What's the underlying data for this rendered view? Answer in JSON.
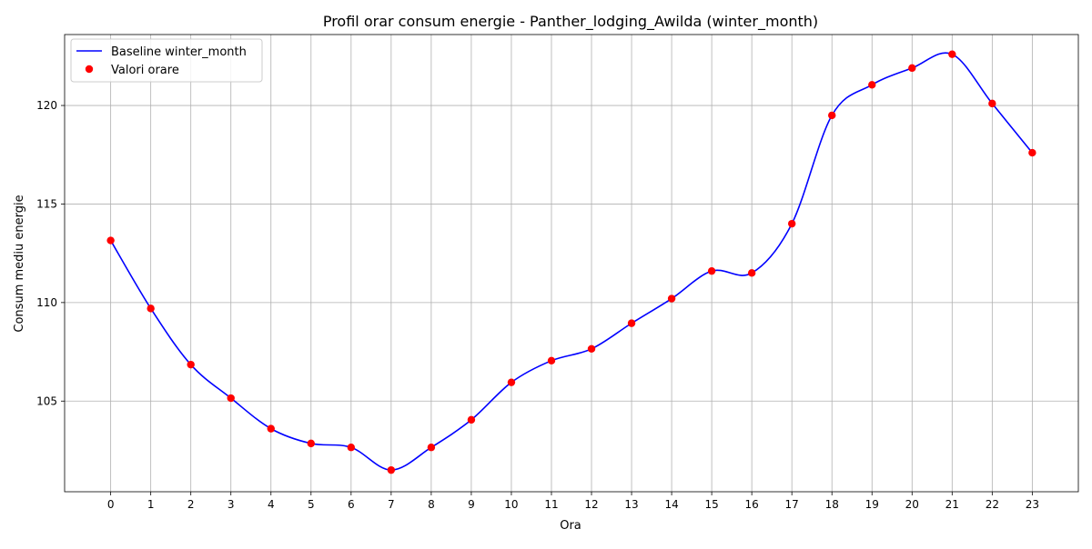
{
  "chart_data": {
    "type": "line",
    "title": "Profil orar consum energie - Panther_lodging_Awilda (winter_month)",
    "xlabel": "Ora",
    "ylabel": "Consum mediu energie",
    "x": [
      0,
      1,
      2,
      3,
      4,
      5,
      6,
      7,
      8,
      9,
      10,
      11,
      12,
      13,
      14,
      15,
      16,
      17,
      18,
      19,
      20,
      21,
      22,
      23
    ],
    "x_tick_labels": [
      "0",
      "1",
      "2",
      "3",
      "4",
      "5",
      "6",
      "7",
      "8",
      "9",
      "10",
      "11",
      "12",
      "13",
      "14",
      "15",
      "16",
      "17",
      "18",
      "19",
      "20",
      "21",
      "22",
      "23"
    ],
    "xlim": [
      -1.15,
      24.15
    ],
    "ylim": [
      100.4,
      123.6
    ],
    "y_ticks": [
      105,
      110,
      115,
      120
    ],
    "y_tick_labels": [
      "105",
      "110",
      "115",
      "120"
    ],
    "grid": true,
    "legend_position": "top-left",
    "series": [
      {
        "name": "Baseline winter_month",
        "kind": "line",
        "color": "#0000ff",
        "values": [
          113.15,
          109.7,
          106.85,
          105.15,
          103.6,
          102.85,
          102.65,
          101.5,
          102.65,
          104.05,
          105.95,
          107.05,
          107.65,
          108.95,
          110.2,
          111.6,
          111.5,
          114.0,
          119.5,
          121.05,
          121.9,
          122.6,
          120.1,
          117.6
        ]
      },
      {
        "name": "Valori orare",
        "kind": "scatter",
        "color": "#ff0000",
        "values": [
          113.15,
          109.7,
          106.85,
          105.15,
          103.6,
          102.85,
          102.65,
          101.5,
          102.65,
          104.05,
          105.95,
          107.05,
          107.65,
          108.95,
          110.2,
          111.6,
          111.5,
          114.0,
          119.5,
          121.05,
          121.9,
          122.6,
          120.1,
          117.6
        ]
      }
    ]
  }
}
